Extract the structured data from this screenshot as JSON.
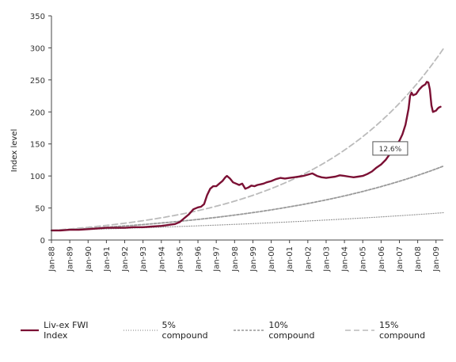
{
  "chart_data": {
    "type": "line",
    "title": "",
    "xlabel": "",
    "ylabel": "Index level",
    "ylim": [
      0,
      350
    ],
    "yticks": [
      0,
      50,
      100,
      150,
      200,
      250,
      300,
      350
    ],
    "xlim": [
      1988.0,
      2009.4
    ],
    "xtick_labels": [
      "Jan-88",
      "Jan-89",
      "Jan-90",
      "Jan-91",
      "Jan-92",
      "Jan-93",
      "Jan-94",
      "Jan-95",
      "Jan-96",
      "Jan-97",
      "Jan-98",
      "Jan-99",
      "Jan-00",
      "Jan-01",
      "Jan-02",
      "Jan-03",
      "Jan-04",
      "Jan-05",
      "Jan-06",
      "Jan-07",
      "Jan-08",
      "Jan-09"
    ],
    "grid": false,
    "legend_position": "bottom",
    "series": [
      {
        "name": "Liv-ex FWI Index",
        "color": "#7b1034",
        "style": "solid",
        "x": [
          "Jan-88",
          "Jul-88",
          "Jan-89",
          "Jul-89",
          "Jan-90",
          "Jul-90",
          "Jan-91",
          "Jul-91",
          "Jan-92",
          "Jul-92",
          "Jan-93",
          "Jul-93",
          "Jan-94",
          "Apr-94",
          "Jul-94",
          "Oct-94",
          "Jan-95",
          "Apr-95",
          "Jul-95",
          "Oct-95",
          "Jan-96",
          "Mar-96",
          "May-96",
          "Jul-96",
          "Sep-96",
          "Nov-96",
          "Jan-97",
          "Mar-97",
          "May-97",
          "Jul-97",
          "Aug-97",
          "Oct-97",
          "Dec-97",
          "Feb-98",
          "Apr-98",
          "Jun-98",
          "Aug-98",
          "Oct-98",
          "Dec-98",
          "Feb-99",
          "Apr-99",
          "Jun-99",
          "Aug-99",
          "Oct-99",
          "Jan-00",
          "Apr-00",
          "Jul-00",
          "Oct-00",
          "Jan-01",
          "Apr-01",
          "Jul-01",
          "Oct-01",
          "Jan-02",
          "Apr-02",
          "Jul-02",
          "Oct-02",
          "Jan-03",
          "Apr-03",
          "Jul-03",
          "Oct-03",
          "Jan-04",
          "Apr-04",
          "Jul-04",
          "Oct-04",
          "Jan-05",
          "Apr-05",
          "Jul-05",
          "Oct-05",
          "Jan-06",
          "Apr-06",
          "Jul-06",
          "Oct-06",
          "Jan-07",
          "Mar-07",
          "May-07",
          "Jul-07",
          "Aug-07",
          "Sep-07",
          "Oct-07",
          "Dec-07",
          "Feb-08",
          "Apr-08",
          "Jun-08",
          "Jul-08",
          "Aug-08",
          "Sep-08",
          "Oct-08",
          "Nov-08",
          "Dec-08",
          "Jan-09",
          "Feb-09",
          "Mar-09",
          "Apr-09"
        ],
        "values": [
          15,
          15,
          16,
          16,
          17,
          18,
          19,
          19,
          19,
          20,
          20,
          21,
          22,
          23,
          24,
          25,
          28,
          34,
          40,
          48,
          51,
          52,
          56,
          70,
          80,
          84,
          84,
          88,
          92,
          98,
          100,
          96,
          90,
          88,
          86,
          88,
          80,
          82,
          85,
          84,
          86,
          87,
          88,
          90,
          92,
          95,
          97,
          96,
          97,
          98,
          99,
          100,
          102,
          104,
          100,
          98,
          97,
          98,
          99,
          101,
          100,
          99,
          98,
          99,
          100,
          103,
          107,
          113,
          118,
          125,
          135,
          145,
          155,
          165,
          180,
          205,
          225,
          230,
          226,
          228,
          235,
          240,
          243,
          247,
          246,
          235,
          210,
          200,
          201,
          202,
          205,
          207,
          208
        ]
      },
      {
        "name": "5% compound",
        "color": "#999999",
        "style": "dotted",
        "growth_rate": 0.05,
        "start_value": 15
      },
      {
        "name": "10% compound",
        "color": "#999999",
        "style": "dashed",
        "growth_rate": 0.1,
        "start_value": 15
      },
      {
        "name": "15% compound",
        "color": "#bbbbbb",
        "style": "long-dashed",
        "growth_rate": 0.15,
        "start_value": 15
      }
    ],
    "annotations": [
      {
        "text": "12.6%",
        "x": "Jul-06",
        "y": 143
      }
    ]
  }
}
